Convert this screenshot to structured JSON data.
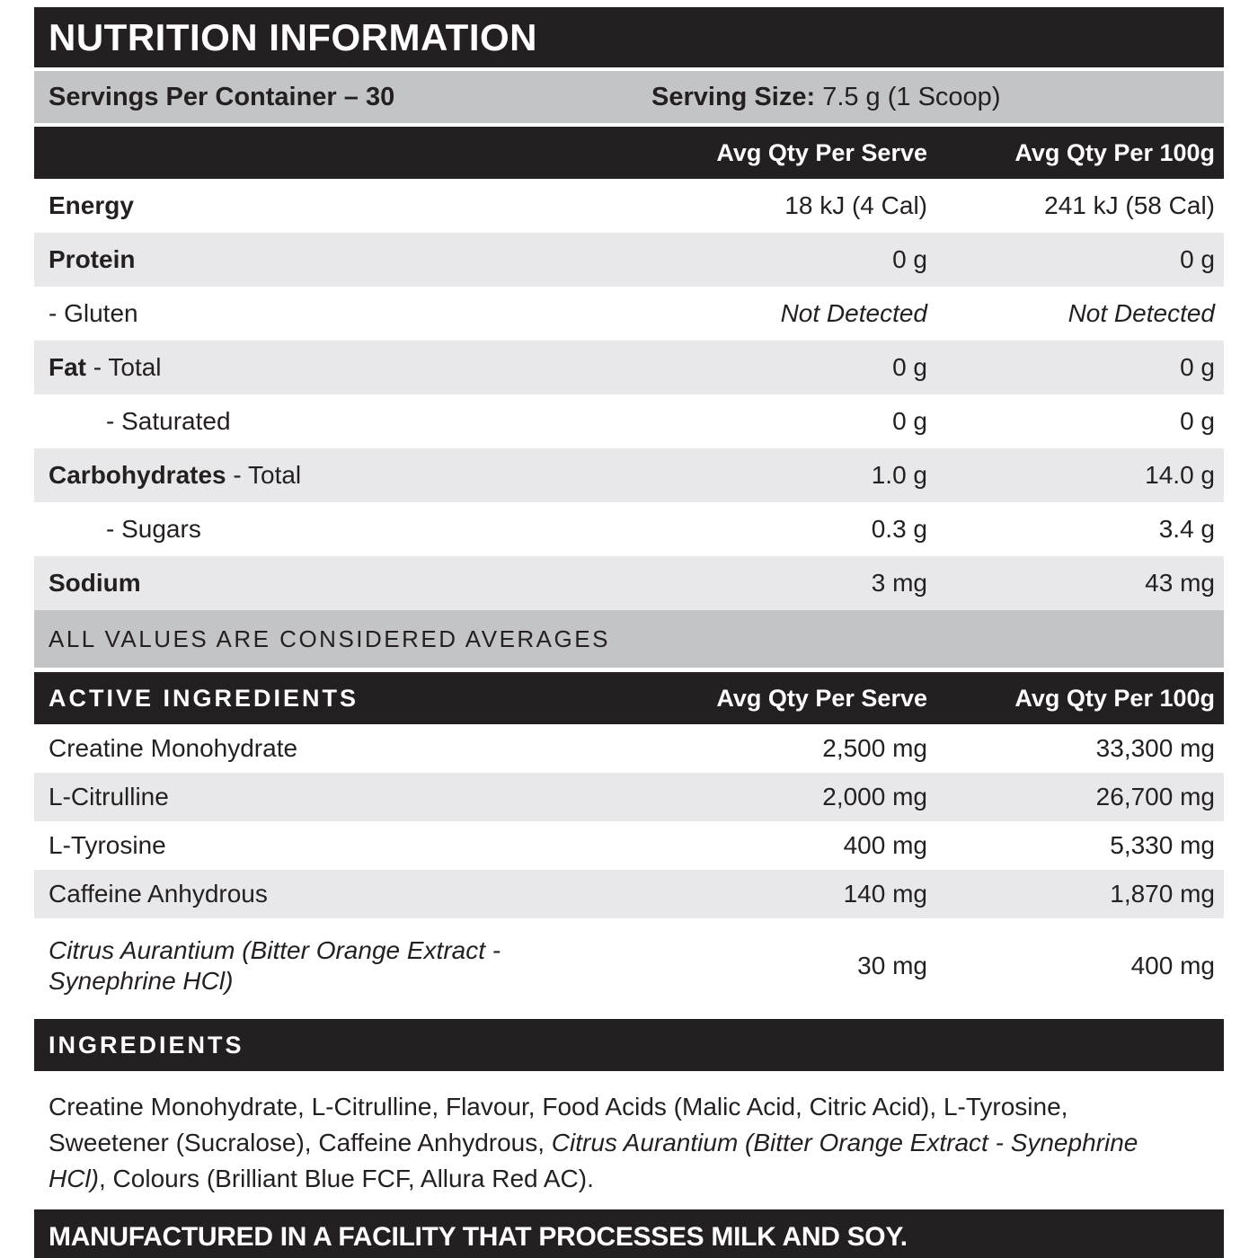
{
  "title": "NUTRITION INFORMATION",
  "serving": {
    "servings_per_container": "Servings Per Container – 30",
    "serving_size_label": "Serving Size:",
    "serving_size_value": "7.5 g (1 Scoop)"
  },
  "columns": {
    "per_serve": "Avg Qty Per Serve",
    "per_100g": "Avg Qty Per 100g"
  },
  "nutrients": [
    {
      "bold": "Energy",
      "rest": "",
      "per_serve": "18 kJ (4 Cal)",
      "per_100g": "241 kJ (58 Cal)"
    },
    {
      "bold": "Protein",
      "rest": "",
      "per_serve": "0 g",
      "per_100g": "0 g"
    },
    {
      "bold": "",
      "rest": "- Gluten",
      "per_serve": "Not Detected",
      "per_100g": "Not Detected"
    },
    {
      "bold": "Fat",
      "rest": " - Total",
      "per_serve": "0 g",
      "per_100g": "0 g"
    },
    {
      "bold": "",
      "rest": "- Saturated",
      "per_serve": "0 g",
      "per_100g": "0 g"
    },
    {
      "bold": "Carbohydrates",
      "rest": " - Total",
      "per_serve": "1.0 g",
      "per_100g": "14.0 g"
    },
    {
      "bold": "",
      "rest": "- Sugars",
      "per_serve": "0.3 g",
      "per_100g": "3.4 g"
    },
    {
      "bold": "Sodium",
      "rest": "",
      "per_serve": "3 mg",
      "per_100g": "43 mg"
    }
  ],
  "averages_note": "ALL VALUES ARE CONSIDERED AVERAGES",
  "active": {
    "header": "ACTIVE INGREDIENTS",
    "rows": [
      {
        "name": "Creatine Monohydrate",
        "per_serve": "2,500 mg",
        "per_100g": "33,300 mg"
      },
      {
        "name": "L-Citrulline",
        "per_serve": "2,000 mg",
        "per_100g": "26,700 mg"
      },
      {
        "name": "L-Tyrosine",
        "per_serve": "400 mg",
        "per_100g": "5,330 mg"
      },
      {
        "name": "Caffeine Anhydrous",
        "per_serve": "140 mg",
        "per_100g": "1,870 mg"
      },
      {
        "name": "Citrus Aurantium (Bitter Orange Extract - Synephrine HCl)",
        "per_serve": "30 mg",
        "per_100g": "400 mg"
      }
    ]
  },
  "ingredients": {
    "header": "INGREDIENTS",
    "text_before": "Creatine Monohydrate, L-Citrulline, Flavour, Food Acids (Malic Acid, Citric Acid), L-Tyrosine, Sweetener (Sucralose), Caffeine Anhydrous, ",
    "text_italic": "Citrus Aurantium (Bitter Orange Extract - Synephrine HCl)",
    "text_after": ", Colours (Brilliant Blue FCF, Allura Red AC)."
  },
  "allergen_notice": "MANUFACTURED IN A FACILITY THAT PROCESSES MILK AND SOY.",
  "colors": {
    "black_bar": "#241f21",
    "medium_gray_bar": "#c3c4c6",
    "light_gray_row": "#e8e8ea",
    "text": "#241f21"
  }
}
